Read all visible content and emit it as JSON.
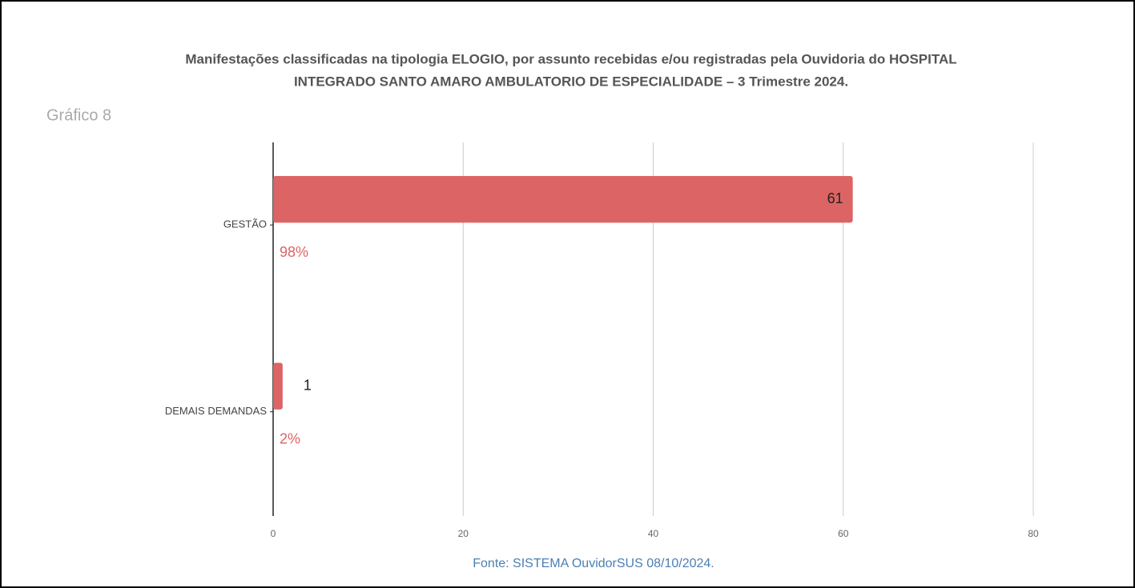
{
  "chart_data": {
    "type": "hbar",
    "title": [
      "Manifestações classificadas na tipologia ELOGIO, por assunto recebidas e/ou registradas pela Ouvidoria do HOSPITAL",
      "INTEGRADO SANTO AMARO AMBULATORIO DE ESPECIALIDADE – 3 Trimestre 2024."
    ],
    "subtitle": "Gráfico 8",
    "categories": [
      "GESTÃO",
      "DEMAIS DEMANDAS"
    ],
    "values": [
      61,
      1
    ],
    "percent_labels": [
      "98%",
      "2%"
    ],
    "color": "#dd6464",
    "xlim": [
      0,
      80
    ],
    "xticks": [
      0,
      20,
      40,
      60,
      80
    ],
    "grid": true,
    "source": "Fonte: SISTEMA OuvidorSUS 08/10/2024."
  }
}
